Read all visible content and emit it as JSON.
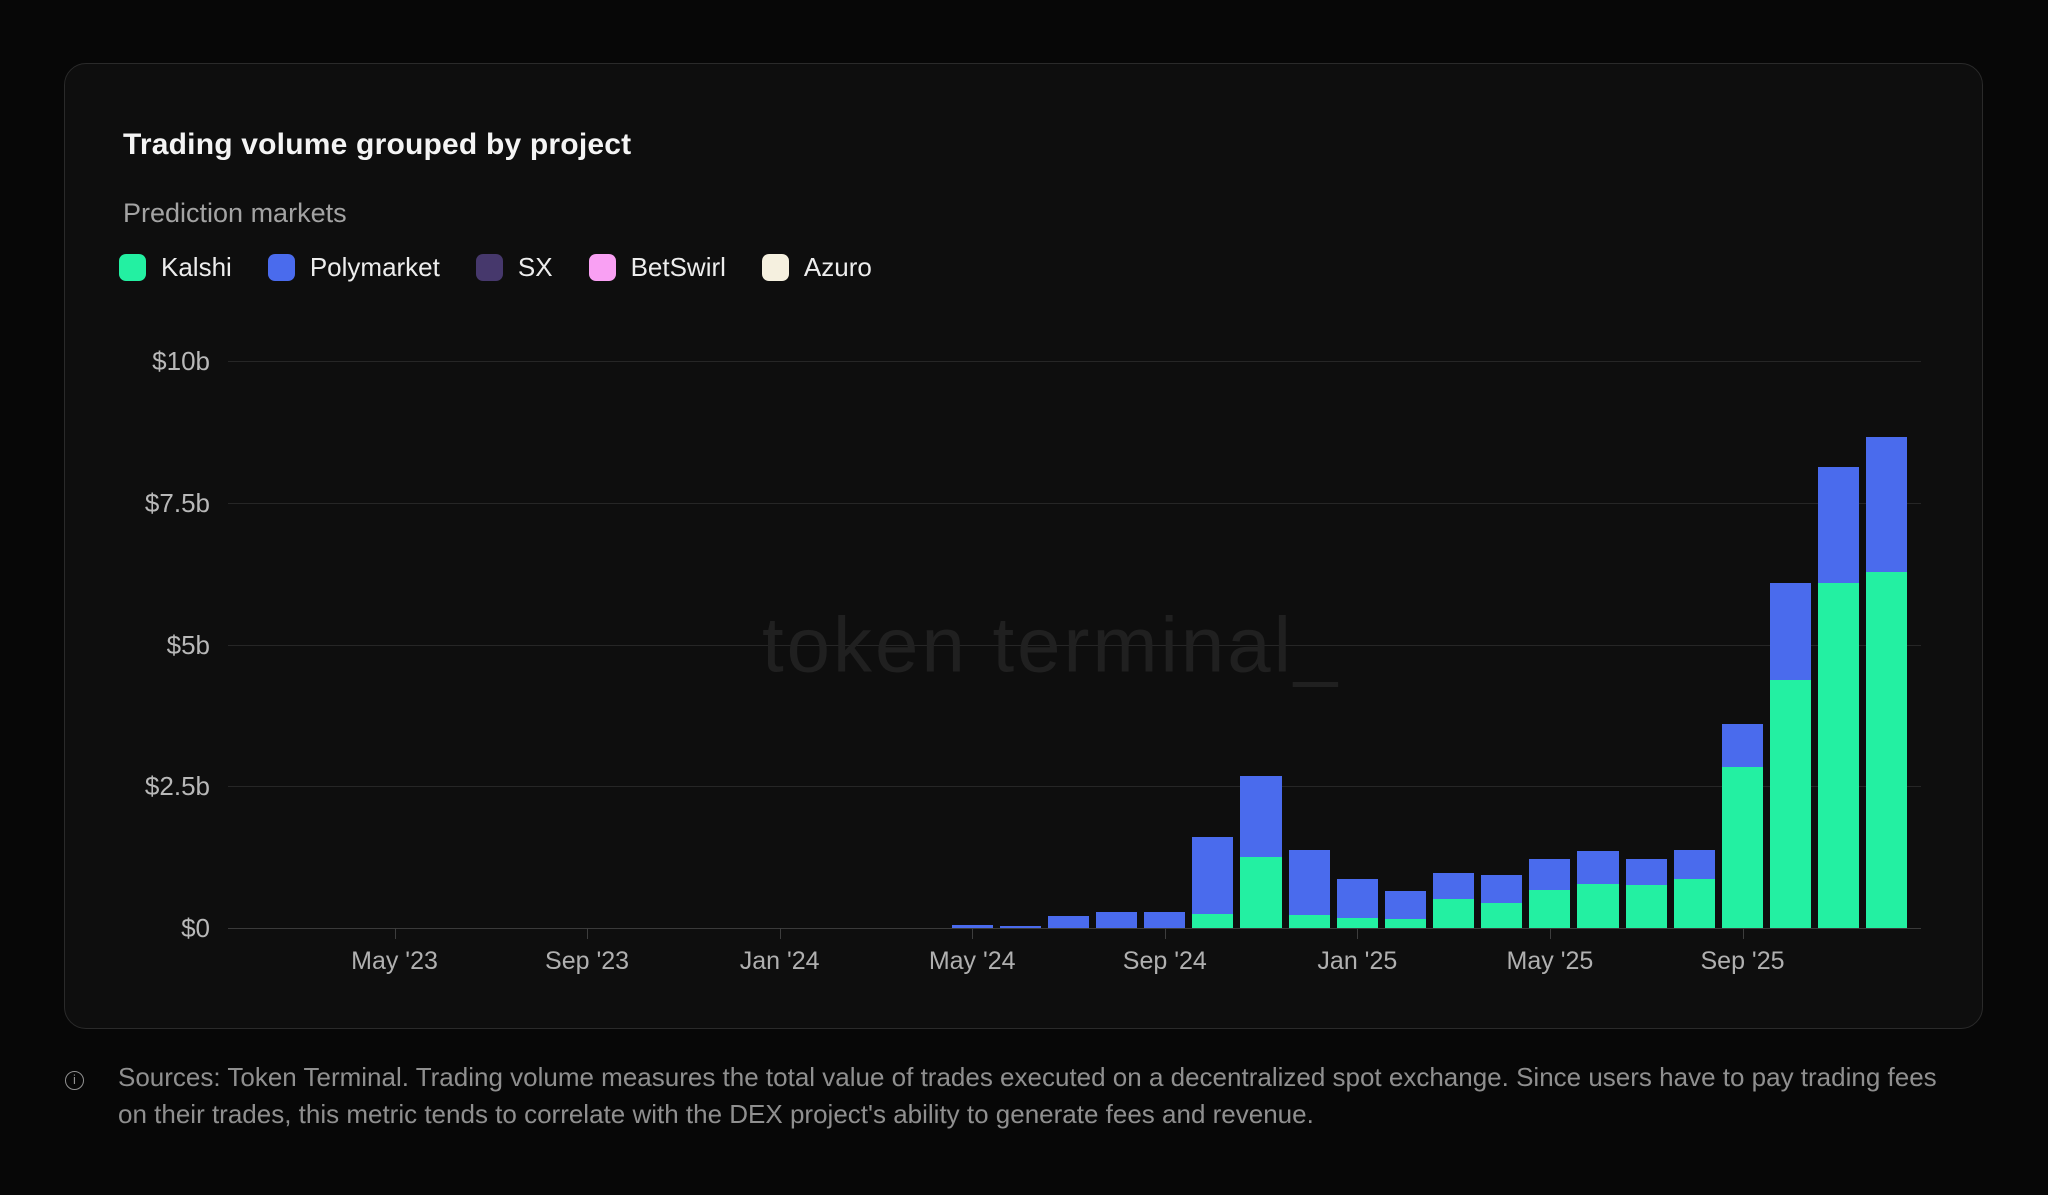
{
  "card": {
    "title": "Trading volume grouped by project",
    "subtitle": "Prediction markets",
    "watermark": "token terminal_"
  },
  "legend": {
    "items": [
      {
        "label": "Kalshi",
        "color": "#23f0a2"
      },
      {
        "label": "Polymarket",
        "color": "#4a6bed"
      },
      {
        "label": "SX",
        "color": "#46386c"
      },
      {
        "label": "BetSwirl",
        "color": "#f9a0f3"
      },
      {
        "label": "Azuro",
        "color": "#f5f0df"
      }
    ]
  },
  "footer": {
    "icon": "info-icon",
    "text": "Sources: Token Terminal. Trading volume measures the total value of trades executed on a decentralized spot exchange. Since users have to pay trading fees on their trades, this metric tends to correlate with the DEX project's ability to generate fees and revenue."
  },
  "chart_data": {
    "type": "bar",
    "stacked": true,
    "title": "Trading volume grouped by project",
    "subtitle": "Prediction markets",
    "unit": "USD billions",
    "ylim": [
      0,
      10
    ],
    "grid": true,
    "legend_position": "top",
    "yticks": [
      {
        "label": "$0",
        "value": 0
      },
      {
        "label": "$2.5b",
        "value": 2.5
      },
      {
        "label": "$5b",
        "value": 5
      },
      {
        "label": "$7.5b",
        "value": 7.5
      },
      {
        "label": "$10b",
        "value": 10
      }
    ],
    "xticks": [
      "May '23",
      "Sep '23",
      "Jan '24",
      "May '24",
      "Sep '24",
      "Jan '25",
      "May '25",
      "Sep '25"
    ],
    "categories": [
      "Feb '23",
      "Mar '23",
      "Apr '23",
      "May '23",
      "Jun '23",
      "Jul '23",
      "Aug '23",
      "Sep '23",
      "Oct '23",
      "Nov '23",
      "Dec '23",
      "Jan '24",
      "Feb '24",
      "Mar '24",
      "Apr '24",
      "May '24",
      "Jun '24",
      "Jul '24",
      "Aug '24",
      "Sep '24",
      "Oct '24",
      "Nov '24",
      "Dec '24",
      "Jan '25",
      "Feb '25",
      "Mar '25",
      "Apr '25",
      "May '25",
      "Jun '25",
      "Jul '25",
      "Aug '25",
      "Sep '25",
      "Oct '25",
      "Nov '25",
      "Dec '25"
    ],
    "series": [
      {
        "name": "Kalshi",
        "color": "#23f0a2",
        "values": [
          0,
          0,
          0,
          0,
          0,
          0,
          0,
          0,
          0,
          0,
          0,
          0,
          0,
          0,
          0,
          0,
          0,
          0,
          0,
          0,
          0.25,
          1.26,
          0.23,
          0.18,
          0.16,
          0.51,
          0.44,
          0.67,
          0.78,
          0.76,
          0.87,
          2.84,
          4.38,
          6.08,
          6.28
        ]
      },
      {
        "name": "Polymarket",
        "color": "#4a6bed",
        "values": [
          0,
          0,
          0,
          0,
          0,
          0,
          0,
          0,
          0,
          0,
          0,
          0,
          0,
          0,
          0,
          0.05,
          0.04,
          0.21,
          0.28,
          0.28,
          1.36,
          1.42,
          1.15,
          0.69,
          0.5,
          0.46,
          0.5,
          0.55,
          0.57,
          0.46,
          0.51,
          0.76,
          1.7,
          2.05,
          2.38
        ]
      },
      {
        "name": "SX",
        "color": "#46386c",
        "values": [
          0,
          0,
          0,
          0,
          0,
          0,
          0,
          0,
          0,
          0,
          0,
          0,
          0,
          0,
          0,
          0,
          0,
          0,
          0,
          0,
          0,
          0,
          0,
          0,
          0,
          0,
          0,
          0,
          0,
          0,
          0,
          0,
          0,
          0,
          0
        ]
      },
      {
        "name": "BetSwirl",
        "color": "#f9a0f3",
        "values": [
          0,
          0,
          0,
          0,
          0,
          0,
          0,
          0,
          0,
          0,
          0,
          0,
          0,
          0,
          0,
          0,
          0,
          0,
          0,
          0,
          0,
          0,
          0,
          0,
          0,
          0,
          0,
          0,
          0,
          0,
          0,
          0,
          0,
          0,
          0
        ]
      },
      {
        "name": "Azuro",
        "color": "#f5f0df",
        "values": [
          0,
          0,
          0,
          0,
          0,
          0,
          0,
          0,
          0,
          0,
          0,
          0,
          0,
          0,
          0,
          0,
          0,
          0,
          0,
          0,
          0,
          0,
          0,
          0,
          0,
          0,
          0,
          0,
          0,
          0,
          0,
          0,
          0,
          0,
          0
        ]
      }
    ]
  }
}
